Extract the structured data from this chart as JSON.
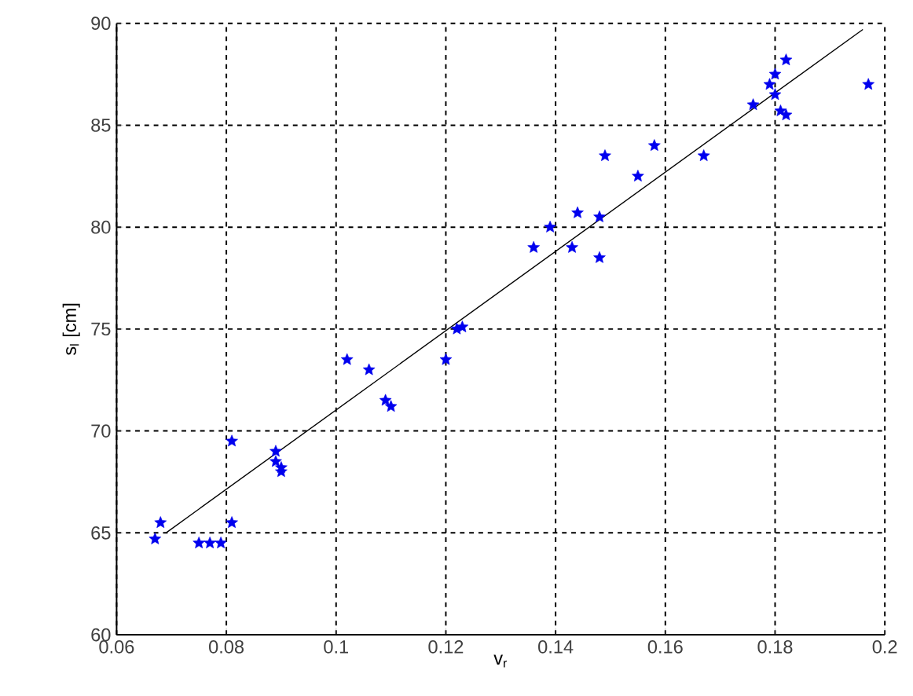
{
  "chart_data": {
    "type": "scatter",
    "xlabel": "v$_{r}$",
    "ylabel": "s$_{l}$ [cm]",
    "xlim": [
      0.06,
      0.2
    ],
    "ylim": [
      60,
      90
    ],
    "xticks": [
      0.06,
      0.08,
      0.1,
      0.12,
      0.14,
      0.16,
      0.18,
      0.2
    ],
    "yticks": [
      60,
      65,
      70,
      75,
      80,
      85,
      90
    ],
    "grid": true,
    "series": [
      {
        "color": "#0000ee",
        "marker": "star",
        "x": [
          0.067,
          0.068,
          0.075,
          0.077,
          0.079,
          0.081,
          0.081,
          0.089,
          0.089,
          0.09,
          0.09,
          0.102,
          0.106,
          0.109,
          0.11,
          0.12,
          0.122,
          0.123,
          0.136,
          0.139,
          0.143,
          0.144,
          0.148,
          0.148,
          0.149,
          0.155,
          0.158,
          0.167,
          0.176,
          0.179,
          0.18,
          0.18,
          0.181,
          0.182,
          0.182,
          0.197
        ],
        "values": [
          64.7,
          65.5,
          64.5,
          64.5,
          64.5,
          65.5,
          69.5,
          69,
          68.5,
          68.2,
          68,
          73.5,
          73,
          71.5,
          71.2,
          73.5,
          75,
          75.1,
          79,
          80,
          79,
          80.7,
          78.5,
          80.5,
          83.5,
          82.5,
          84,
          83.5,
          86,
          87,
          87.5,
          86.5,
          85.7,
          85.5,
          88.2,
          87
        ]
      },
      {
        "type": "line",
        "color": "#000000",
        "marker": "none",
        "line_style": "solid",
        "x": [
          0.069,
          0.196
        ],
        "values": [
          65,
          89.7
        ]
      }
    ]
  }
}
